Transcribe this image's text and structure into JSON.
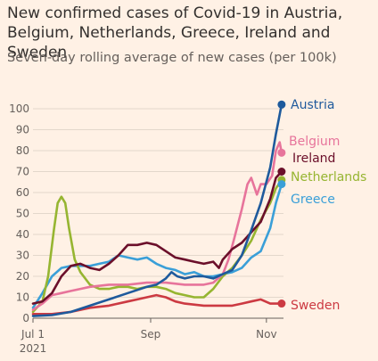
{
  "title": "New confirmed cases of Covid-19 in Austria, Belgium, Netherlands, Greece, Ireland and Sweden",
  "subtitle": "Seven-day rolling average of new cases (per 100k)",
  "chart_data": {
    "type": "line",
    "title": "New confirmed cases of Covid-19 in Austria, Belgium, Netherlands, Greece, Ireland and Sweden",
    "subtitle": "Seven-day rolling average of new cases (per 100k)",
    "ylim": [
      0,
      100
    ],
    "y_ticks": [
      "0",
      "10",
      "20",
      "30",
      "40",
      "50",
      "60",
      "70",
      "80",
      "90",
      "100"
    ],
    "x_ticks": [
      {
        "label": "Jul 1",
        "day": 0,
        "sub": "2021"
      },
      {
        "label": "Sep",
        "day": 62,
        "sub": ""
      },
      {
        "label": "Nov",
        "day": 123,
        "sub": ""
      }
    ],
    "x_range_days": [
      0,
      132
    ],
    "grid": "horizontal",
    "series": [
      {
        "name": "Austria",
        "color": "#1e5a9c",
        "points": [
          [
            0,
            1
          ],
          [
            10,
            1.5
          ],
          [
            20,
            3
          ],
          [
            30,
            6
          ],
          [
            40,
            9
          ],
          [
            50,
            12
          ],
          [
            60,
            15
          ],
          [
            65,
            16
          ],
          [
            70,
            19
          ],
          [
            73,
            22
          ],
          [
            76,
            20
          ],
          [
            80,
            19
          ],
          [
            85,
            20
          ],
          [
            90,
            20
          ],
          [
            95,
            19
          ],
          [
            100,
            21
          ],
          [
            105,
            23
          ],
          [
            110,
            30
          ],
          [
            115,
            42
          ],
          [
            120,
            55
          ],
          [
            125,
            72
          ],
          [
            128,
            88
          ],
          [
            131,
            102
          ]
        ]
      },
      {
        "name": "Belgium",
        "color": "#e7749b",
        "points": [
          [
            0,
            4
          ],
          [
            5,
            7
          ],
          [
            10,
            11
          ],
          [
            15,
            12
          ],
          [
            20,
            13
          ],
          [
            25,
            14
          ],
          [
            30,
            15
          ],
          [
            40,
            16
          ],
          [
            50,
            16
          ],
          [
            60,
            17
          ],
          [
            70,
            17
          ],
          [
            80,
            16
          ],
          [
            90,
            16
          ],
          [
            95,
            17
          ],
          [
            100,
            21
          ],
          [
            103,
            28
          ],
          [
            106,
            38
          ],
          [
            110,
            52
          ],
          [
            113,
            64
          ],
          [
            115,
            67
          ],
          [
            118,
            59
          ],
          [
            120,
            64
          ],
          [
            123,
            64
          ],
          [
            126,
            68
          ],
          [
            128,
            80
          ],
          [
            130,
            84
          ],
          [
            131,
            79
          ]
        ]
      },
      {
        "name": "Ireland",
        "color": "#6b0f2a",
        "points": [
          [
            0,
            7
          ],
          [
            5,
            8
          ],
          [
            10,
            12
          ],
          [
            15,
            20
          ],
          [
            20,
            25
          ],
          [
            25,
            26
          ],
          [
            30,
            24
          ],
          [
            35,
            23
          ],
          [
            40,
            26
          ],
          [
            45,
            30
          ],
          [
            50,
            35
          ],
          [
            55,
            35
          ],
          [
            60,
            36
          ],
          [
            65,
            35
          ],
          [
            70,
            32
          ],
          [
            75,
            29
          ],
          [
            80,
            28
          ],
          [
            85,
            27
          ],
          [
            90,
            26
          ],
          [
            95,
            27
          ],
          [
            98,
            24
          ],
          [
            100,
            28
          ],
          [
            105,
            33
          ],
          [
            110,
            36
          ],
          [
            115,
            41
          ],
          [
            120,
            46
          ],
          [
            125,
            57
          ],
          [
            128,
            67
          ],
          [
            131,
            70
          ]
        ]
      },
      {
        "name": "Netherlands",
        "color": "#96b531",
        "points": [
          [
            0,
            3
          ],
          [
            5,
            8
          ],
          [
            8,
            20
          ],
          [
            11,
            42
          ],
          [
            13,
            55
          ],
          [
            15,
            58
          ],
          [
            17,
            55
          ],
          [
            19,
            43
          ],
          [
            22,
            28
          ],
          [
            25,
            22
          ],
          [
            30,
            16
          ],
          [
            35,
            14
          ],
          [
            40,
            14
          ],
          [
            45,
            15
          ],
          [
            50,
            15
          ],
          [
            55,
            14
          ],
          [
            60,
            15
          ],
          [
            65,
            15
          ],
          [
            70,
            14
          ],
          [
            75,
            12
          ],
          [
            80,
            11
          ],
          [
            85,
            10
          ],
          [
            90,
            10
          ],
          [
            95,
            14
          ],
          [
            100,
            20
          ],
          [
            105,
            24
          ],
          [
            110,
            30
          ],
          [
            115,
            37
          ],
          [
            120,
            47
          ],
          [
            125,
            55
          ],
          [
            128,
            62
          ],
          [
            131,
            66
          ]
        ]
      },
      {
        "name": "Greece",
        "color": "#3a9fd8",
        "points": [
          [
            0,
            5
          ],
          [
            5,
            12
          ],
          [
            10,
            20
          ],
          [
            15,
            24
          ],
          [
            20,
            25
          ],
          [
            25,
            25
          ],
          [
            30,
            25
          ],
          [
            35,
            26
          ],
          [
            40,
            27
          ],
          [
            45,
            30
          ],
          [
            50,
            29
          ],
          [
            55,
            28
          ],
          [
            60,
            29
          ],
          [
            65,
            26
          ],
          [
            70,
            24
          ],
          [
            75,
            23
          ],
          [
            80,
            21
          ],
          [
            85,
            22
          ],
          [
            90,
            20
          ],
          [
            95,
            20
          ],
          [
            100,
            21
          ],
          [
            105,
            22
          ],
          [
            110,
            24
          ],
          [
            115,
            29
          ],
          [
            120,
            32
          ],
          [
            125,
            43
          ],
          [
            128,
            55
          ],
          [
            131,
            64
          ]
        ]
      },
      {
        "name": "Sweden",
        "color": "#cc3a42",
        "points": [
          [
            0,
            2
          ],
          [
            10,
            2
          ],
          [
            20,
            3
          ],
          [
            30,
            5
          ],
          [
            40,
            6
          ],
          [
            50,
            8
          ],
          [
            55,
            9
          ],
          [
            60,
            10
          ],
          [
            65,
            11
          ],
          [
            70,
            10
          ],
          [
            75,
            8
          ],
          [
            80,
            7
          ],
          [
            90,
            6
          ],
          [
            100,
            6
          ],
          [
            105,
            6
          ],
          [
            110,
            7
          ],
          [
            115,
            8
          ],
          [
            120,
            9
          ],
          [
            125,
            7
          ],
          [
            131,
            7
          ]
        ]
      }
    ],
    "end_labels": [
      "Austria",
      "Belgium",
      "Ireland",
      "Netherlands",
      "Greece",
      "Sweden"
    ]
  }
}
